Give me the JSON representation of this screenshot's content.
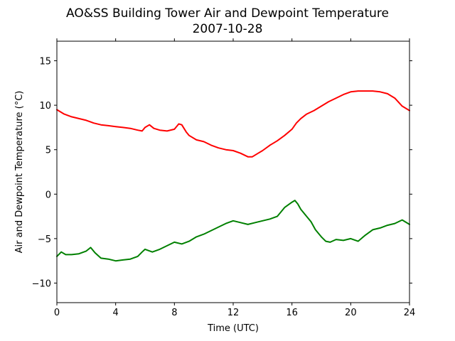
{
  "chart_data": {
    "type": "line",
    "title": "AO&SS Building Tower Air and Dewpoint Temperature",
    "subtitle": "2007-10-28",
    "xlabel": "Time (UTC)",
    "ylabel": "Air and Dewpoint Temperature (°C)",
    "xlim": [
      0,
      24
    ],
    "ylim": [
      -12.2,
      17.2
    ],
    "xticks": [
      0,
      4,
      8,
      12,
      16,
      20,
      24
    ],
    "yticks": [
      -10,
      -5,
      0,
      5,
      10,
      15
    ],
    "grid": false,
    "legend": "none",
    "series": [
      {
        "color": "#ff0000",
        "x": [
          0,
          0.5,
          1,
          1.5,
          2,
          2.5,
          3,
          3.5,
          4,
          4.5,
          5,
          5.5,
          5.8,
          6,
          6.3,
          6.6,
          7,
          7.5,
          8,
          8.3,
          8.5,
          8.8,
          9,
          9.5,
          10,
          10.5,
          11,
          11.5,
          12,
          12.5,
          13,
          13.3,
          13.7,
          14,
          14.5,
          15,
          15.5,
          16,
          16.3,
          16.6,
          17,
          17.5,
          18,
          18.5,
          19,
          19.5,
          20,
          20.5,
          21,
          21.5,
          22,
          22.5,
          23,
          23.5,
          24
        ],
        "y": [
          9.5,
          9.0,
          8.7,
          8.5,
          8.3,
          8.0,
          7.8,
          7.7,
          7.6,
          7.5,
          7.4,
          7.2,
          7.1,
          7.5,
          7.8,
          7.4,
          7.2,
          7.1,
          7.3,
          7.9,
          7.8,
          7.0,
          6.6,
          6.1,
          5.9,
          5.5,
          5.2,
          5.0,
          4.9,
          4.6,
          4.2,
          4.2,
          4.6,
          4.9,
          5.5,
          6.0,
          6.6,
          7.3,
          8.0,
          8.5,
          9.0,
          9.4,
          9.9,
          10.4,
          10.8,
          11.2,
          11.5,
          11.6,
          11.6,
          11.6,
          11.5,
          11.3,
          10.8,
          9.9,
          9.4
        ]
      },
      {
        "color": "#008000",
        "x": [
          0,
          0.3,
          0.6,
          1,
          1.5,
          2,
          2.3,
          2.6,
          3,
          3.5,
          4,
          4.5,
          5,
          5.5,
          5.8,
          6,
          6.5,
          7,
          7.5,
          8,
          8.5,
          9,
          9.5,
          10,
          10.5,
          11,
          11.5,
          12,
          12.5,
          13,
          13.5,
          14,
          14.5,
          15,
          15.5,
          16,
          16.2,
          16.4,
          16.6,
          17,
          17.3,
          17.6,
          18,
          18.3,
          18.6,
          19,
          19.5,
          20,
          20.5,
          21,
          21.5,
          22,
          22.5,
          23,
          23.5,
          24
        ],
        "y": [
          -7.0,
          -6.5,
          -6.8,
          -6.8,
          -6.7,
          -6.4,
          -6.0,
          -6.6,
          -7.2,
          -7.3,
          -7.5,
          -7.4,
          -7.3,
          -7.0,
          -6.5,
          -6.2,
          -6.5,
          -6.2,
          -5.8,
          -5.4,
          -5.6,
          -5.3,
          -4.8,
          -4.5,
          -4.1,
          -3.7,
          -3.3,
          -3.0,
          -3.2,
          -3.4,
          -3.2,
          -3.0,
          -2.8,
          -2.5,
          -1.5,
          -0.9,
          -0.7,
          -1.1,
          -1.7,
          -2.5,
          -3.1,
          -4.0,
          -4.8,
          -5.3,
          -5.4,
          -5.1,
          -5.2,
          -5.0,
          -5.3,
          -4.6,
          -4.0,
          -3.8,
          -3.5,
          -3.3,
          -2.9,
          -3.4
        ]
      }
    ]
  }
}
